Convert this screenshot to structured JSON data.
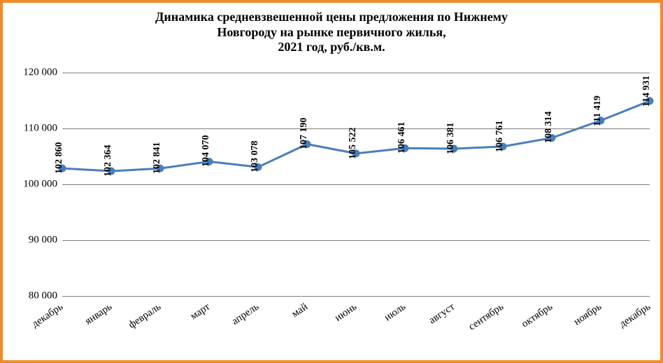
{
  "border_color": "#f08b2b",
  "background_color": "#ffffff",
  "grid_color": "#7f7f7f",
  "title": {
    "text": "Динамика средневзвешенной цены предложения по Нижнему\nНовгороду на рынке первичного жилья,\n2021 год, руб./кв.м.",
    "fontsize": 18,
    "fontweight": "bold"
  },
  "chart": {
    "type": "line",
    "ylim": [
      80000,
      120000
    ],
    "yticks": [
      80000,
      90000,
      100000,
      110000,
      120000
    ],
    "ytick_labels": [
      "80 000",
      "90 000",
      "100 000",
      "110 000",
      "120 000"
    ],
    "ytick_fontsize": 15,
    "categories": [
      "декабрь",
      "январь",
      "февраль",
      "март",
      "апрель",
      "май",
      "июнь",
      "июль",
      "август",
      "сентябрь",
      "октябрь",
      "ноябрь",
      "декабрь"
    ],
    "xtick_fontsize": 15,
    "xtick_rotation": -34,
    "values": [
      102860,
      102364,
      102841,
      104070,
      103078,
      107190,
      105522,
      106461,
      106381,
      106761,
      108314,
      111419,
      114931
    ],
    "value_labels": [
      "102 860",
      "102 364",
      "102 841",
      "104 070",
      "103 078",
      "107 190",
      "105 522",
      "106 461",
      "106 381",
      "106 761",
      "108 314",
      "111 419",
      "114 931"
    ],
    "datalabel_fontsize": 14,
    "datalabel_rotation": -90,
    "line_color": "#4a7ebb",
    "line_width": 3,
    "marker_size": 5,
    "marker_fill": "#4a7ebb",
    "marker_stroke": "#4a7ebb"
  }
}
